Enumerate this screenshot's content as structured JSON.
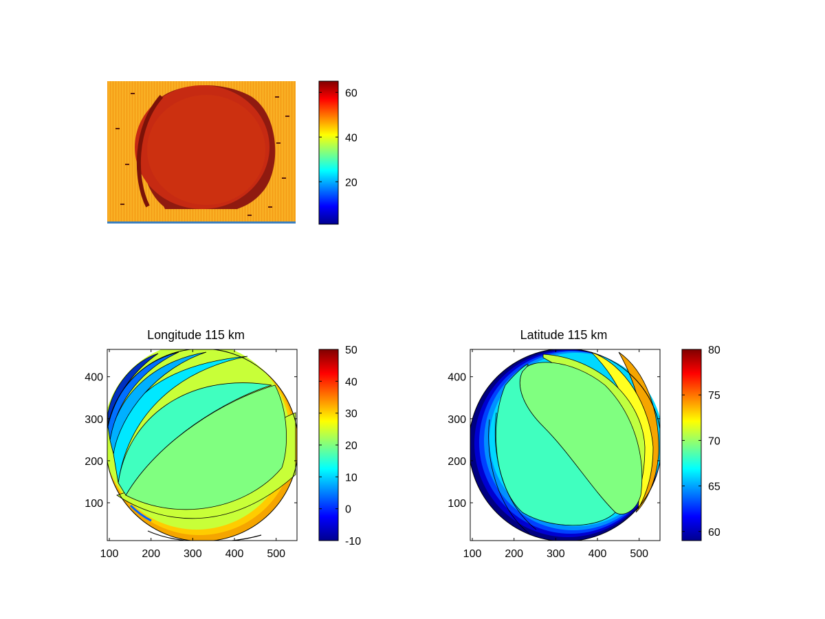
{
  "colormap": [
    "#00008f",
    "#0000ff",
    "#0080ff",
    "#00ffff",
    "#80ff80",
    "#ffff00",
    "#ff8000",
    "#ff0000",
    "#800000"
  ],
  "chart_data": [
    {
      "type": "heatmap",
      "title": "",
      "xlabel": "",
      "ylabel": "",
      "colorbar": {
        "ticks": [
          20,
          40,
          60
        ],
        "range": [
          1,
          65
        ]
      },
      "description_values": {
        "background_level": 47,
        "disk_level": 60,
        "disk_edge_level": 63
      }
    },
    {
      "type": "heatmap",
      "title": "Longitude 115 km",
      "xlabel": "",
      "ylabel": "",
      "xlim": [
        95,
        550
      ],
      "ylim": [
        10,
        465
      ],
      "xticks": [
        100,
        200,
        300,
        400,
        500
      ],
      "yticks": [
        100,
        200,
        300,
        400
      ],
      "colorbar": {
        "ticks": [
          -10,
          0,
          10,
          20,
          30,
          40,
          50
        ],
        "range": [
          -10,
          50
        ]
      },
      "contour_levels": [
        5,
        10,
        15,
        20,
        25,
        30,
        35
      ],
      "disk": {
        "center": [
          322,
          237
        ],
        "radius": 225
      }
    },
    {
      "type": "heatmap",
      "title": "Latitude 115 km",
      "xlabel": "",
      "ylabel": "",
      "xlim": [
        95,
        550
      ],
      "ylim": [
        10,
        465
      ],
      "xticks": [
        100,
        200,
        300,
        400,
        500
      ],
      "yticks": [
        100,
        200,
        300,
        400
      ],
      "colorbar": {
        "ticks": [
          60,
          65,
          70,
          75,
          80
        ],
        "range": [
          59,
          80
        ]
      },
      "contour_levels": [
        62,
        64,
        66,
        67,
        68,
        69,
        70,
        71,
        72
      ],
      "disk": {
        "center": [
          322,
          237
        ],
        "radius": 225
      }
    }
  ]
}
